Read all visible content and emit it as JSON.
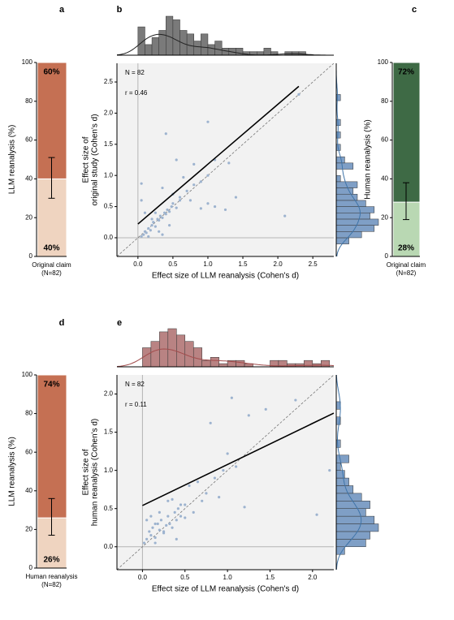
{
  "chart_data": [
    {
      "type": "stacked-bar",
      "panel": "a",
      "ylabel": "LLM reanalysis (%)",
      "categories": [
        "Original claim"
      ],
      "category_note": "(N=82)",
      "segments": [
        {
          "color": "#efd4c0",
          "values": [
            40
          ],
          "value_labels": [
            "40%"
          ]
        },
        {
          "color": "#c57053",
          "values": [
            60
          ],
          "value_labels": [
            "60%"
          ]
        }
      ],
      "error": [
        30,
        51
      ],
      "ylim": [
        0,
        100
      ],
      "yticks": [
        0,
        20,
        40,
        60,
        80,
        100
      ]
    },
    {
      "type": "scatter",
      "panel": "b",
      "xlabel": "Effect size of LLM reanalysis (Cohen's d)",
      "ylabel": [
        "Effect size of",
        "original study (Cohen's d)"
      ],
      "annotations": [
        "N = 82",
        "r = 0.46"
      ],
      "point_color": "#9db3cf",
      "x": [
        0.05,
        0.08,
        0.1,
        0.12,
        0.15,
        0.18,
        0.2,
        0.22,
        0.25,
        0.28,
        0.3,
        0.32,
        0.35,
        0.38,
        0.4,
        0.42,
        0.45,
        0.48,
        0.5,
        0.55,
        0.6,
        0.3,
        0.35,
        0.2,
        0.15,
        0.45,
        0.25,
        0.05,
        0.05,
        0.1,
        0.4,
        0.55,
        0.65,
        0.8,
        0.75,
        1.0,
        1.1,
        1.3,
        1.0,
        0.9,
        1.1,
        1.4,
        1.25,
        2.1,
        0.35,
        0.6,
        1.0,
        0.9,
        0.7,
        0.5,
        2.3,
        0.8
      ],
      "y": [
        0.02,
        0.05,
        0.1,
        0.08,
        0.15,
        0.12,
        0.2,
        0.25,
        0.18,
        0.3,
        0.28,
        0.35,
        0.32,
        0.4,
        0.38,
        0.45,
        0.42,
        0.5,
        0.55,
        0.48,
        0.6,
        0.1,
        0.05,
        0.3,
        0.02,
        0.2,
        0.4,
        0.87,
        0.6,
        0.4,
        1.67,
        1.25,
        0.97,
        1.18,
        0.6,
        1.86,
        1.25,
        1.2,
        0.55,
        0.47,
        0.5,
        0.65,
        0.45,
        0.35,
        0.8,
        0.65,
        1.0,
        0.9,
        0.75,
        0.7,
        2.3,
        0.85
      ],
      "fit_line": {
        "color": "#000000",
        "x": [
          0,
          2.3
        ],
        "y": [
          0.22,
          2.43
        ]
      },
      "top_histogram": {
        "color": "#7a7a7a",
        "kde_color": "#222222",
        "bins": [
          -0.1,
          0,
          0.1,
          0.2,
          0.3,
          0.4,
          0.5,
          0.6,
          0.7,
          0.8,
          0.9,
          1.0,
          1.1,
          1.2,
          1.3,
          1.4,
          1.5,
          1.6,
          1.7,
          1.8,
          1.9,
          2.0,
          2.1,
          2.2,
          2.3,
          2.4,
          2.5,
          2.6,
          2.7,
          2.8
        ],
        "counts": [
          0,
          8,
          3,
          5,
          7,
          11,
          10,
          7,
          6,
          4,
          6,
          3,
          4,
          2,
          2,
          2,
          1,
          1,
          1,
          2,
          1,
          0,
          1,
          1,
          1,
          0,
          0,
          0,
          0
        ]
      },
      "right_histogram": {
        "color": "#7f9fc6",
        "kde_color": "#3f74a8",
        "bins": [
          -0.1,
          0,
          0.1,
          0.2,
          0.3,
          0.4,
          0.5,
          0.6,
          0.7,
          0.8,
          0.9,
          1.0,
          1.1,
          1.2,
          1.3,
          1.4,
          1.5,
          1.6,
          1.7,
          1.8,
          1.9,
          2.0,
          2.1,
          2.2,
          2.3
        ],
        "counts": [
          3,
          6,
          9,
          10,
          8,
          9,
          7,
          5,
          4,
          5,
          1,
          0,
          4,
          2,
          0,
          1,
          0,
          1,
          0,
          1,
          0,
          0,
          0,
          1
        ]
      },
      "xlim": [
        -0.3,
        2.8
      ],
      "ylim": [
        -0.3,
        2.8
      ],
      "xticks": [
        {
          "value": 0,
          "label": "0.0"
        },
        0.5,
        {
          "value": 1,
          "label": "1.0"
        },
        1.5,
        {
          "value": 2,
          "label": "2.0"
        },
        2.5
      ],
      "yticks": [
        {
          "value": 0,
          "label": "0.0"
        },
        0.5,
        {
          "value": 1,
          "label": "1.0"
        },
        1.5,
        {
          "value": 2,
          "label": "2.0"
        },
        2.5
      ]
    },
    {
      "type": "stacked-bar",
      "panel": "c",
      "ylabel": "Human reanalysis (%)",
      "categories": [
        "Original claim"
      ],
      "category_note": "(N=82)",
      "segments": [
        {
          "color": "#b9d8b3",
          "values": [
            28
          ],
          "value_labels": [
            "28%"
          ]
        },
        {
          "color": "#3e6a45",
          "values": [
            72
          ],
          "value_labels": [
            "72%"
          ]
        }
      ],
      "error": [
        19,
        38
      ],
      "ylim": [
        0,
        100
      ],
      "yticks": [
        0,
        20,
        40,
        60,
        80,
        100
      ]
    },
    {
      "type": "stacked-bar",
      "panel": "d",
      "ylabel": "LLM reanalysis (%)",
      "categories": [
        "Human reanalysis"
      ],
      "category_note": "(N=82)",
      "segments": [
        {
          "color": "#efd4c0",
          "values": [
            26
          ],
          "value_labels": [
            "26%"
          ]
        },
        {
          "color": "#c57053",
          "values": [
            74
          ],
          "value_labels": [
            "74%"
          ]
        }
      ],
      "error": [
        17,
        36
      ],
      "ylim": [
        0,
        100
      ],
      "yticks": [
        0,
        20,
        40,
        60,
        80,
        100
      ]
    },
    {
      "type": "scatter",
      "panel": "e",
      "xlabel": "Effect size of LLM reanalysis (Cohen's d)",
      "ylabel": [
        "Effect size of",
        "human reanalysis (Cohen's d)"
      ],
      "annotations": [
        "N = 82",
        "r = 0.11"
      ],
      "point_color": "#9db3cf",
      "x": [
        0.02,
        0.05,
        0.08,
        0.1,
        0.12,
        0.15,
        0.18,
        0.2,
        0.22,
        0.25,
        0.28,
        0.3,
        0.32,
        0.35,
        0.38,
        0.4,
        0.42,
        0.45,
        0.5,
        0.05,
        0.1,
        0.15,
        0.2,
        0.3,
        0.4,
        0.55,
        0.65,
        0.35,
        0.45,
        0.6,
        0.75,
        0.9,
        1.05,
        1.25,
        1.45,
        1.8,
        0.8,
        1.0,
        2.2,
        2.05,
        1.2,
        0.25,
        0.15,
        0.5,
        0.7,
        1.1,
        0.85,
        0.95
      ],
      "y": [
        0.05,
        0.1,
        0.2,
        0.15,
        0.25,
        0.12,
        0.3,
        0.22,
        0.35,
        0.18,
        0.28,
        0.4,
        0.3,
        0.25,
        0.45,
        0.35,
        0.5,
        0.4,
        0.38,
        0.35,
        0.4,
        0.05,
        0.45,
        0.6,
        0.1,
        0.8,
        0.85,
        0.62,
        0.55,
        0.45,
        0.7,
        0.65,
        1.95,
        1.72,
        1.8,
        1.92,
        1.62,
        1.22,
        1.0,
        0.42,
        0.52,
        0.2,
        0.3,
        0.55,
        0.6,
        1.05,
        0.9,
        1.0
      ],
      "fit_line": {
        "color": "#000000",
        "x": [
          0,
          2.25
        ],
        "y": [
          0.54,
          1.75
        ]
      },
      "top_histogram": {
        "color": "#b98383",
        "kde_color": "#a24c4c",
        "bins": [
          -0.1,
          0,
          0.1,
          0.2,
          0.3,
          0.4,
          0.5,
          0.6,
          0.7,
          0.8,
          0.9,
          1.0,
          1.1,
          1.2,
          1.3,
          1.4,
          1.5,
          1.6,
          1.7,
          1.8,
          1.9,
          2.0,
          2.1,
          2.2,
          2.3
        ],
        "counts": [
          0,
          6,
          8,
          11,
          12,
          10,
          8,
          6,
          2,
          3,
          1,
          2,
          2,
          1,
          0,
          0,
          2,
          2,
          1,
          1,
          2,
          1,
          2,
          0
        ]
      },
      "right_histogram": {
        "color": "#7f9fc6",
        "kde_color": "#3f74a8",
        "bins": [
          -0.1,
          0,
          0.1,
          0.2,
          0.3,
          0.4,
          0.5,
          0.6,
          0.7,
          0.8,
          0.9,
          1.0,
          1.1,
          1.2,
          1.3,
          1.4,
          1.5,
          1.6,
          1.7,
          1.8,
          1.9
        ],
        "counts": [
          2,
          7,
          8,
          10,
          9,
          7,
          8,
          6,
          4,
          3,
          2,
          1,
          3,
          0,
          1,
          0,
          0,
          1,
          0,
          1
        ]
      },
      "xlim": [
        -0.3,
        2.25
      ],
      "ylim": [
        -0.3,
        2.25
      ],
      "xticks": [
        {
          "value": 0,
          "label": "0.0"
        },
        0.5,
        {
          "value": 1,
          "label": "1.0"
        },
        1.5,
        {
          "value": 2,
          "label": "2.0"
        }
      ],
      "yticks": [
        {
          "value": 0,
          "label": "0.0"
        },
        0.5,
        {
          "value": 1,
          "label": "1.0"
        },
        1.5,
        {
          "value": 2,
          "label": "2.0"
        }
      ]
    }
  ]
}
